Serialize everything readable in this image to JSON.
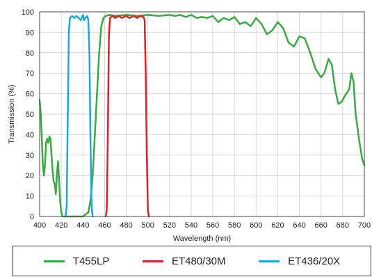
{
  "chart_data": {
    "type": "line",
    "title": "",
    "xlabel": "Wavelength (nm)",
    "ylabel": "Transmission (%)",
    "xlim": [
      400,
      700
    ],
    "ylim": [
      0,
      100
    ],
    "grid": true,
    "legend_position": "bottom",
    "x_ticks": [
      400,
      420,
      440,
      460,
      480,
      500,
      520,
      540,
      560,
      580,
      600,
      620,
      640,
      660,
      680,
      700
    ],
    "y_ticks": [
      0,
      10,
      20,
      30,
      40,
      50,
      60,
      70,
      80,
      90,
      100
    ],
    "series": [
      {
        "name": "T455LP",
        "color": "#3aa845",
        "points": [
          [
            400,
            57
          ],
          [
            401,
            50
          ],
          [
            402,
            38
          ],
          [
            403,
            25
          ],
          [
            404,
            20
          ],
          [
            405,
            26
          ],
          [
            406,
            36
          ],
          [
            407,
            38
          ],
          [
            408,
            36
          ],
          [
            409,
            39
          ],
          [
            410,
            38
          ],
          [
            411,
            30
          ],
          [
            412,
            22
          ],
          [
            413,
            17
          ],
          [
            414,
            16
          ],
          [
            415,
            11
          ],
          [
            416,
            21
          ],
          [
            417,
            27
          ],
          [
            418,
            17
          ],
          [
            419,
            7
          ],
          [
            420,
            2
          ],
          [
            421,
            0
          ],
          [
            425,
            0
          ],
          [
            440,
            0
          ],
          [
            445,
            2
          ],
          [
            447,
            8
          ],
          [
            449,
            20
          ],
          [
            451,
            40
          ],
          [
            453,
            60
          ],
          [
            455,
            80
          ],
          [
            457,
            93
          ],
          [
            459,
            97
          ],
          [
            461,
            98
          ],
          [
            465,
            98.5
          ],
          [
            470,
            98
          ],
          [
            480,
            98.5
          ],
          [
            490,
            98
          ],
          [
            500,
            98.5
          ],
          [
            510,
            98
          ],
          [
            520,
            98.5
          ],
          [
            525,
            98
          ],
          [
            530,
            98.5
          ],
          [
            535,
            97.5
          ],
          [
            540,
            98.5
          ],
          [
            545,
            97
          ],
          [
            550,
            97.5
          ],
          [
            555,
            97
          ],
          [
            560,
            98
          ],
          [
            565,
            95
          ],
          [
            570,
            97
          ],
          [
            575,
            96
          ],
          [
            580,
            97.5
          ],
          [
            585,
            94
          ],
          [
            590,
            95
          ],
          [
            595,
            93
          ],
          [
            600,
            97
          ],
          [
            605,
            94
          ],
          [
            610,
            89
          ],
          [
            615,
            91
          ],
          [
            620,
            95
          ],
          [
            625,
            92
          ],
          [
            630,
            85
          ],
          [
            635,
            83
          ],
          [
            640,
            88
          ],
          [
            645,
            87
          ],
          [
            650,
            80
          ],
          [
            655,
            72
          ],
          [
            660,
            68
          ],
          [
            663,
            70
          ],
          [
            667,
            77
          ],
          [
            670,
            74
          ],
          [
            673,
            62
          ],
          [
            676,
            55
          ],
          [
            679,
            56
          ],
          [
            682,
            59
          ],
          [
            686,
            62
          ],
          [
            688,
            70
          ],
          [
            690,
            66
          ],
          [
            692,
            50
          ],
          [
            695,
            38
          ],
          [
            698,
            28
          ],
          [
            700,
            25
          ]
        ]
      },
      {
        "name": "ET480/30M",
        "color": "#d8232a",
        "points": [
          [
            461,
            0
          ],
          [
            462,
            3
          ],
          [
            463,
            40
          ],
          [
            464,
            88
          ],
          [
            465,
            97
          ],
          [
            467,
            98
          ],
          [
            470,
            97
          ],
          [
            473,
            98
          ],
          [
            476,
            97
          ],
          [
            480,
            98
          ],
          [
            483,
            97
          ],
          [
            487,
            98
          ],
          [
            490,
            97
          ],
          [
            493,
            98
          ],
          [
            496,
            97.5
          ],
          [
            497,
            96
          ],
          [
            498,
            70
          ],
          [
            499,
            30
          ],
          [
            500,
            3
          ],
          [
            501,
            0
          ]
        ]
      },
      {
        "name": "ET436/20X",
        "color": "#1aa8dd",
        "points": [
          [
            424,
            0
          ],
          [
            425,
            5
          ],
          [
            426,
            50
          ],
          [
            427,
            90
          ],
          [
            428,
            97
          ],
          [
            430,
            98
          ],
          [
            432,
            97
          ],
          [
            434,
            98
          ],
          [
            436,
            97
          ],
          [
            438,
            96
          ],
          [
            440,
            98.5
          ],
          [
            441,
            96
          ],
          [
            442,
            97
          ],
          [
            444,
            98
          ],
          [
            445,
            96
          ],
          [
            446,
            80
          ],
          [
            447,
            35
          ],
          [
            448,
            5
          ],
          [
            449,
            0
          ]
        ]
      }
    ]
  }
}
